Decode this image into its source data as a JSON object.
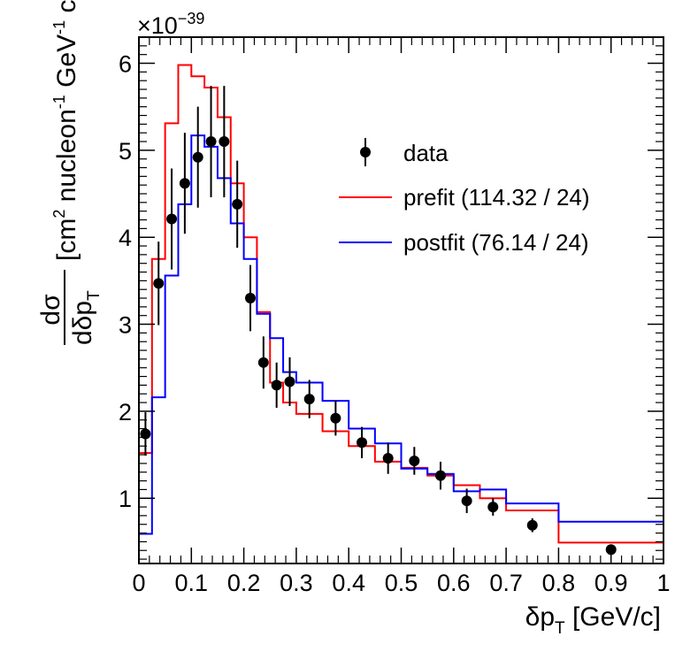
{
  "chart_data": {
    "type": "histogram",
    "title": "",
    "xlabel": {
      "main": "δp",
      "sub": "T",
      "unit": " [GeV/c]"
    },
    "ylabel": {
      "num": "dσ",
      "den": "dδp",
      "den_sub": "T",
      "unit_a": "[cm",
      "unit_a_sup": "2",
      "unit_b": " nucleon",
      "unit_b_sup": "-1",
      "unit_c": " GeV",
      "unit_c_sup": "-1",
      "unit_d": " c]"
    },
    "y_multiplier": {
      "base": "×10",
      "exp": "−39"
    },
    "xlim": [
      0,
      1
    ],
    "ylim": [
      0.25,
      6.3
    ],
    "x_ticks": [
      0,
      0.1,
      0.2,
      0.3,
      0.4,
      0.5,
      0.6,
      0.7,
      0.8,
      0.9,
      1
    ],
    "x_tick_labels": [
      "0",
      "0.1",
      "0.2",
      "0.3",
      "0.4",
      "0.5",
      "0.6",
      "0.7",
      "0.8",
      "0.9",
      "1"
    ],
    "y_ticks": [
      1,
      2,
      3,
      4,
      5,
      6
    ],
    "y_tick_labels": [
      "1",
      "2",
      "3",
      "4",
      "5",
      "6"
    ],
    "bin_edges": [
      0,
      0.025,
      0.05,
      0.075,
      0.1,
      0.125,
      0.15,
      0.175,
      0.2,
      0.225,
      0.25,
      0.275,
      0.3,
      0.35,
      0.4,
      0.45,
      0.5,
      0.55,
      0.6,
      0.65,
      0.7,
      0.8,
      1.0
    ],
    "data": {
      "name": "data",
      "x": [
        0.0125,
        0.0375,
        0.0625,
        0.0875,
        0.1125,
        0.1375,
        0.1625,
        0.1875,
        0.2125,
        0.2375,
        0.2625,
        0.2875,
        0.325,
        0.375,
        0.425,
        0.475,
        0.525,
        0.575,
        0.625,
        0.675,
        0.75,
        0.9
      ],
      "y": [
        1.74,
        3.47,
        4.21,
        4.62,
        4.92,
        5.1,
        5.1,
        4.38,
        3.3,
        2.56,
        2.3,
        2.34,
        2.14,
        1.92,
        1.64,
        1.46,
        1.43,
        1.26,
        0.97,
        0.9,
        0.69,
        0.41
      ],
      "yerr": [
        0.25,
        0.48,
        0.58,
        0.58,
        0.58,
        0.64,
        0.64,
        0.5,
        0.38,
        0.3,
        0.26,
        0.28,
        0.22,
        0.2,
        0.18,
        0.18,
        0.16,
        0.16,
        0.14,
        0.1,
        0.08,
        0.05
      ],
      "color": "#000000"
    },
    "series": [
      {
        "name": "prefit",
        "legend": "prefit (114.32 / 24)",
        "color": "#ff0000",
        "values": [
          1.52,
          3.75,
          5.31,
          5.98,
          5.85,
          5.72,
          5.38,
          4.62,
          4.0,
          3.14,
          2.33,
          2.1,
          1.97,
          1.77,
          1.6,
          1.42,
          1.35,
          1.26,
          1.15,
          1.0,
          0.86,
          0.49
        ]
      },
      {
        "name": "postfit",
        "legend": "postfit (76.14 / 24)",
        "color": "#0000ff",
        "values": [
          0.59,
          2.16,
          3.56,
          4.38,
          5.17,
          5.04,
          4.68,
          4.16,
          3.75,
          3.12,
          2.84,
          2.45,
          2.33,
          2.12,
          1.8,
          1.63,
          1.34,
          1.28,
          1.08,
          1.1,
          0.94,
          0.73
        ]
      }
    ],
    "legend_data_label": "data",
    "legend_position": "upper-right"
  }
}
